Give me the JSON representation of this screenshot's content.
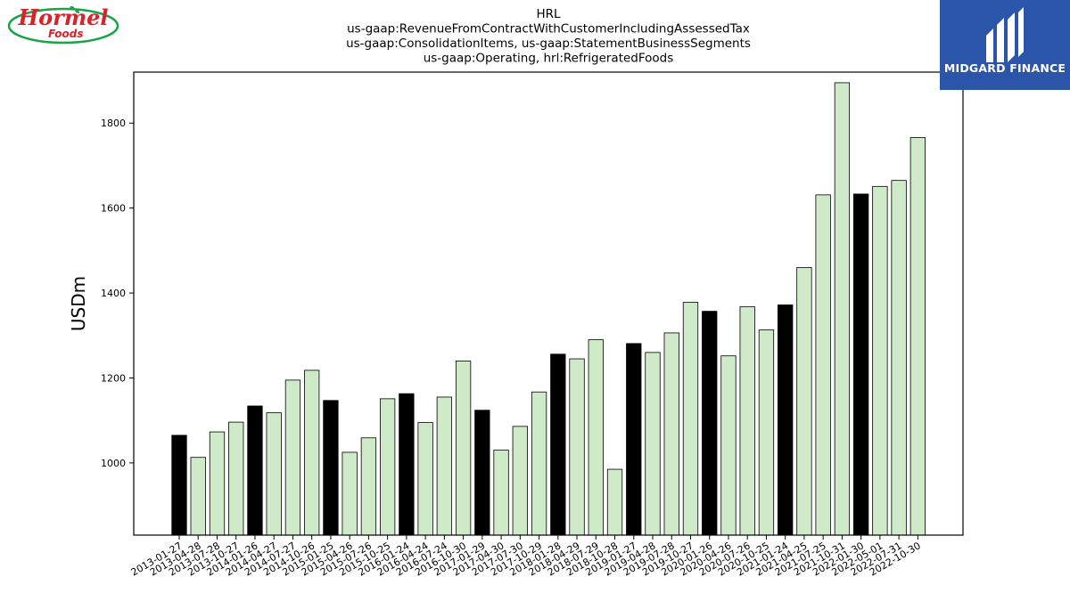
{
  "header": {
    "title_lines": [
      "HRL",
      "us-gaap:RevenueFromContractWithCustomerIncludingAssessedTax",
      "us-gaap:ConsolidationItems, us-gaap:StatementBusinessSegments",
      "us-gaap:Operating, hrl:RefrigeratedFoods"
    ]
  },
  "logos": {
    "left_brand": "Hormel",
    "left_sub": "Foods",
    "left_icon": "hormel-foods-logo",
    "right_text": "MIDGARD FINANCE",
    "right_icon": "midgard-finance-logo"
  },
  "colors": {
    "bar_light": "#cfeac8",
    "bar_dark": "#000000",
    "bar_edge": "#000000",
    "brand_red": "#d8232a",
    "brand_green": "#1aa34a",
    "brand_blue": "#2a55a8"
  },
  "chart_data": {
    "type": "bar",
    "ylabel": "USDm",
    "xlabel": "",
    "ylim": [
      830,
      1920
    ],
    "yticks": [
      1000,
      1200,
      1400,
      1600,
      1800
    ],
    "grid": false,
    "legend": "none",
    "categories": [
      "2013-01-27",
      "2013-04-28",
      "2013-07-28",
      "2013-10-27",
      "2014-01-26",
      "2014-04-27",
      "2014-07-27",
      "2014-10-26",
      "2015-01-25",
      "2015-04-26",
      "2015-07-26",
      "2015-10-25",
      "2016-01-24",
      "2016-04-24",
      "2016-07-24",
      "2016-10-30",
      "2017-01-29",
      "2017-04-30",
      "2017-07-30",
      "2017-10-29",
      "2018-01-28",
      "2018-04-29",
      "2018-07-29",
      "2018-10-28",
      "2019-01-27",
      "2019-04-28",
      "2019-07-28",
      "2019-10-27",
      "2020-01-26",
      "2020-04-26",
      "2020-07-26",
      "2020-10-25",
      "2021-01-24",
      "2021-04-25",
      "2021-07-25",
      "2021-10-31",
      "2022-01-30",
      "2022-05-01",
      "2022-07-31",
      "2022-10-30"
    ],
    "values": [
      1065,
      1013,
      1073,
      1096,
      1134,
      1118,
      1195,
      1218,
      1147,
      1025,
      1059,
      1151,
      1163,
      1095,
      1155,
      1240,
      1124,
      1030,
      1086,
      1167,
      1256,
      1245,
      1290,
      985,
      1281,
      1260,
      1306,
      1378,
      1357,
      1252,
      1368,
      1313,
      1372,
      1460,
      1631,
      1895,
      1633,
      1651,
      1665,
      1766
    ],
    "highlighted": [
      0,
      4,
      8,
      12,
      16,
      20,
      24,
      28,
      32,
      36
    ]
  }
}
